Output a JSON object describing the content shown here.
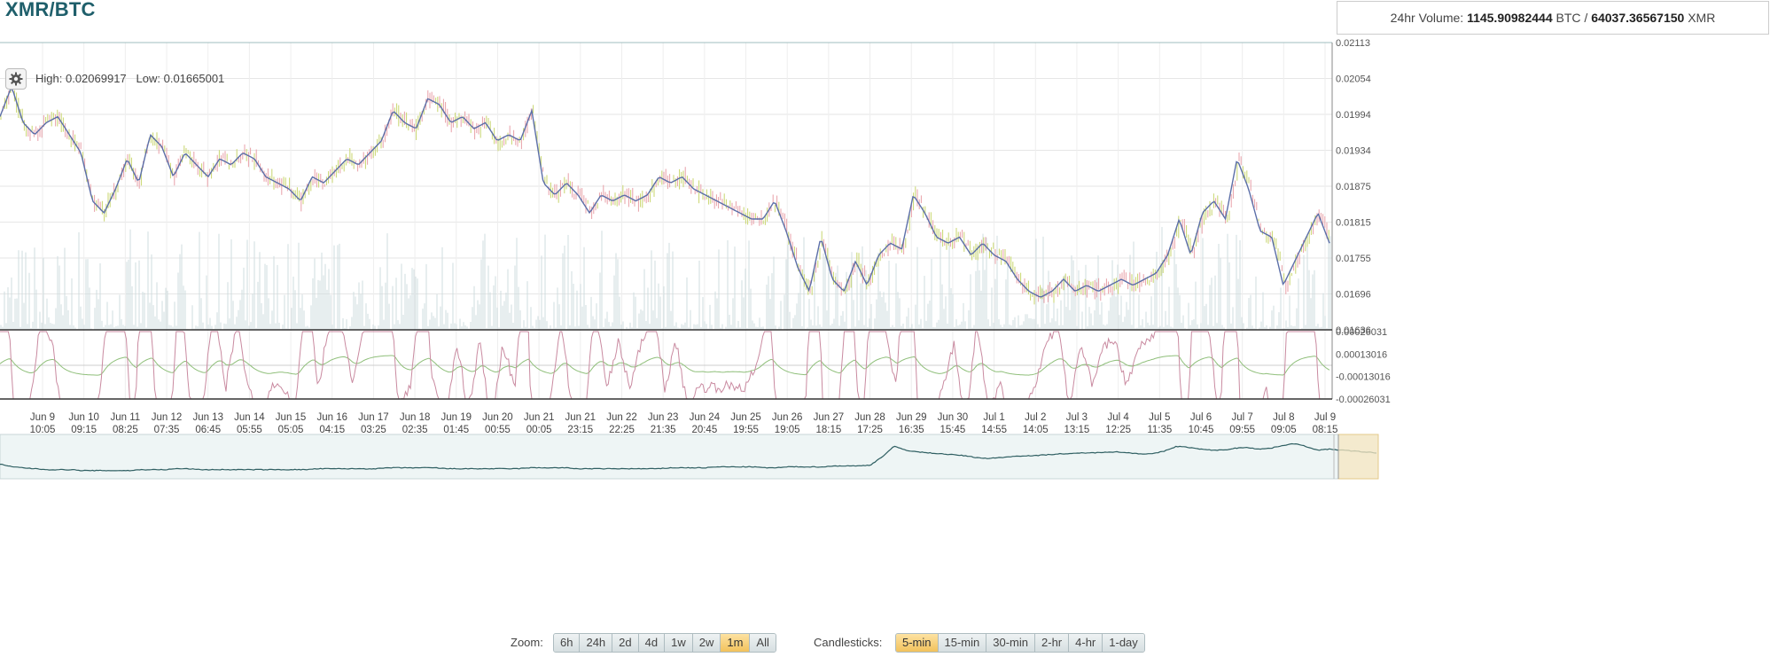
{
  "header": {
    "pair": "XMR/BTC",
    "volume_prefix": "24hr Volume:",
    "volume_btc": "1145.90982444",
    "unit_btc": "BTC",
    "separator": "/",
    "volume_xmr": "64037.36567150",
    "unit_xmr": "XMR"
  },
  "stats": {
    "high_label": "High:",
    "high_value": "0.02069917",
    "low_label": "Low:",
    "low_value": "0.01665001"
  },
  "controls": {
    "zoom_label": "Zoom:",
    "zoom_options": [
      "6h",
      "24h",
      "2d",
      "4d",
      "1w",
      "2w",
      "1m",
      "All"
    ],
    "zoom_active": "1m",
    "candle_label": "Candlesticks:",
    "candle_options": [
      "5-min",
      "15-min",
      "30-min",
      "2-hr",
      "4-hr",
      "1-day"
    ],
    "candle_active": "5-min"
  },
  "colors": {
    "ema": "#5c6fa8",
    "candle_up": "#c8d66e",
    "candle_down": "#e8a0a8",
    "macd": "#c98aa0",
    "signal": "#8fbf7a",
    "volume": "#cfdcdf",
    "navigator": "#2f5f62",
    "grid": "#e6e6e6"
  },
  "chart_data": {
    "type": "line",
    "y_ticks": [
      "0.02113",
      "0.02054",
      "0.01994",
      "0.01934",
      "0.01875",
      "0.01815",
      "0.01755",
      "0.01696",
      "0.01636"
    ],
    "ylim": [
      0.01636,
      0.02113
    ],
    "macd_ticks": [
      "0.00026031",
      "0.00013016",
      "-0.00013016",
      "-0.00026031"
    ],
    "macd_ylim": [
      -0.00026031,
      0.00026031
    ],
    "x_ticks": [
      {
        "day": "Jun 9",
        "time": "10:05"
      },
      {
        "day": "Jun 10",
        "time": "09:15"
      },
      {
        "day": "Jun 11",
        "time": "08:25"
      },
      {
        "day": "Jun 12",
        "time": "07:35"
      },
      {
        "day": "Jun 13",
        "time": "06:45"
      },
      {
        "day": "Jun 14",
        "time": "05:55"
      },
      {
        "day": "Jun 15",
        "time": "05:05"
      },
      {
        "day": "Jun 16",
        "time": "04:15"
      },
      {
        "day": "Jun 17",
        "time": "03:25"
      },
      {
        "day": "Jun 18",
        "time": "02:35"
      },
      {
        "day": "Jun 19",
        "time": "01:45"
      },
      {
        "day": "Jun 20",
        "time": "00:55"
      },
      {
        "day": "Jun 21",
        "time": "00:05"
      },
      {
        "day": "Jun 21",
        "time": "23:15"
      },
      {
        "day": "Jun 22",
        "time": "22:25"
      },
      {
        "day": "Jun 23",
        "time": "21:35"
      },
      {
        "day": "Jun 24",
        "time": "20:45"
      },
      {
        "day": "Jun 25",
        "time": "19:55"
      },
      {
        "day": "Jun 26",
        "time": "19:05"
      },
      {
        "day": "Jun 27",
        "time": "18:15"
      },
      {
        "day": "Jun 28",
        "time": "17:25"
      },
      {
        "day": "Jun 29",
        "time": "16:35"
      },
      {
        "day": "Jun 30",
        "time": "15:45"
      },
      {
        "day": "Jul 1",
        "time": "14:55"
      },
      {
        "day": "Jul 2",
        "time": "14:05"
      },
      {
        "day": "Jul 3",
        "time": "13:15"
      },
      {
        "day": "Jul 4",
        "time": "12:25"
      },
      {
        "day": "Jul 5",
        "time": "11:35"
      },
      {
        "day": "Jul 6",
        "time": "10:45"
      },
      {
        "day": "Jul 7",
        "time": "09:55"
      },
      {
        "day": "Jul 8",
        "time": "09:05"
      },
      {
        "day": "Jul 9",
        "time": "08:15"
      }
    ],
    "price_ema": [
      0.0199,
      0.0204,
      0.0198,
      0.0196,
      0.0198,
      0.0199,
      0.0196,
      0.0193,
      0.0185,
      0.0183,
      0.0187,
      0.0192,
      0.0188,
      0.0196,
      0.0194,
      0.0189,
      0.0193,
      0.0191,
      0.0189,
      0.0192,
      0.0191,
      0.0193,
      0.0192,
      0.0189,
      0.0188,
      0.0187,
      0.0185,
      0.0189,
      0.0188,
      0.019,
      0.0192,
      0.0191,
      0.0193,
      0.0195,
      0.02,
      0.0198,
      0.0197,
      0.0202,
      0.0201,
      0.0198,
      0.0199,
      0.0197,
      0.0198,
      0.0195,
      0.0196,
      0.0195,
      0.02,
      0.0188,
      0.0186,
      0.0188,
      0.0186,
      0.0183,
      0.0186,
      0.0185,
      0.0186,
      0.0185,
      0.0186,
      0.0189,
      0.0188,
      0.0189,
      0.0187,
      0.0186,
      0.0185,
      0.0184,
      0.0183,
      0.0182,
      0.0182,
      0.0185,
      0.018,
      0.0174,
      0.017,
      0.0179,
      0.0172,
      0.017,
      0.0175,
      0.0171,
      0.0176,
      0.0178,
      0.0177,
      0.0186,
      0.0183,
      0.0179,
      0.0178,
      0.0179,
      0.0176,
      0.0178,
      0.0176,
      0.0175,
      0.0172,
      0.017,
      0.0169,
      0.017,
      0.0172,
      0.017,
      0.0171,
      0.017,
      0.0171,
      0.0172,
      0.0171,
      0.0172,
      0.0173,
      0.0176,
      0.0182,
      0.0176,
      0.0183,
      0.0185,
      0.0182,
      0.0192,
      0.0187,
      0.018,
      0.0179,
      0.0171,
      0.0175,
      0.0179,
      0.0183,
      0.0178
    ],
    "navigator": [
      0.0177,
      0.0174,
      0.0173,
      0.0172,
      0.0171,
      0.0171,
      0.0171,
      0.017,
      0.017,
      0.017,
      0.017,
      0.017,
      0.0171,
      0.0171,
      0.0171,
      0.0172,
      0.0172,
      0.0171,
      0.0171,
      0.0171,
      0.0171,
      0.0171,
      0.0171,
      0.0171,
      0.0171,
      0.0171,
      0.0171,
      0.0172,
      0.0172,
      0.0172,
      0.0172,
      0.0172,
      0.0172,
      0.0173,
      0.0173,
      0.0173,
      0.0173,
      0.0173,
      0.0172,
      0.0172,
      0.0172,
      0.0172,
      0.0172,
      0.0172,
      0.0172,
      0.0173,
      0.0173,
      0.0173,
      0.0173,
      0.0172,
      0.0172,
      0.0172,
      0.0172,
      0.0172,
      0.0172,
      0.0172,
      0.0172,
      0.0173,
      0.0173,
      0.0173,
      0.0173,
      0.0174,
      0.0174,
      0.0174,
      0.0174,
      0.0173,
      0.0173,
      0.0174,
      0.0174,
      0.0174,
      0.0174,
      0.0175,
      0.0175,
      0.0175,
      0.0176,
      0.0185,
      0.0196,
      0.0192,
      0.019,
      0.0189,
      0.0188,
      0.0187,
      0.0186,
      0.0184,
      0.0183,
      0.0184,
      0.0185,
      0.0186,
      0.0186,
      0.0187,
      0.0188,
      0.0188,
      0.0189,
      0.0189,
      0.019,
      0.019,
      0.0189,
      0.0188,
      0.0188,
      0.0191,
      0.0196,
      0.0195,
      0.0193,
      0.0192,
      0.0192,
      0.0194,
      0.0195,
      0.0193,
      0.0194,
      0.0197,
      0.0199,
      0.0196,
      0.0192,
      0.0193,
      0.0192,
      0.0191,
      0.019,
      0.0189
    ]
  }
}
